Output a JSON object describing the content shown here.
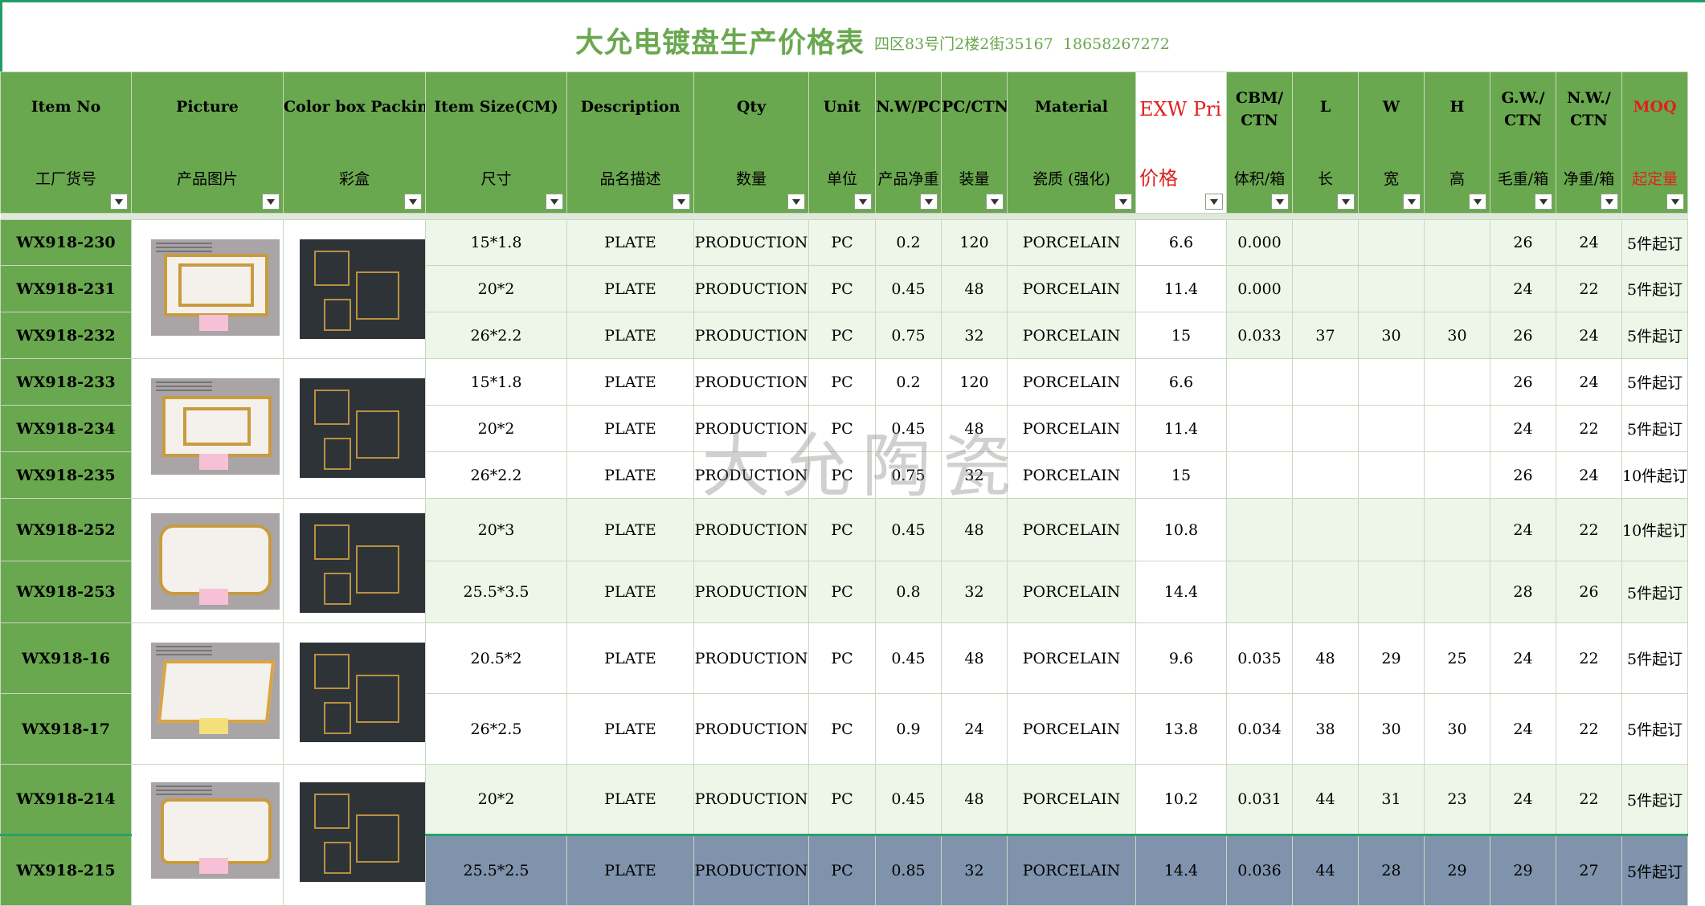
{
  "title": {
    "main": "大允电镀盘生产价格表",
    "address": "四区83号门2楼2街35167",
    "phone": "18658267272"
  },
  "watermark": "大允陶瓷",
  "columns": [
    {
      "en": "Item No",
      "cn": "工厂货号"
    },
    {
      "en": "Picture",
      "cn": "产品图片"
    },
    {
      "en": "Color box Packing",
      "cn": "彩盒"
    },
    {
      "en": "Item Size(CM)",
      "cn": "尺寸"
    },
    {
      "en": "Description",
      "cn": "品名描述"
    },
    {
      "en": "Qty",
      "cn": "数量"
    },
    {
      "en": "Unit",
      "cn": "单位"
    },
    {
      "en": "N.W/PC",
      "cn": "产品净重"
    },
    {
      "en": "PC/CTN",
      "cn": "装量"
    },
    {
      "en": "Material",
      "cn": "瓷质 (强化)"
    },
    {
      "en": "EXW Pri",
      "cn": "价格"
    },
    {
      "en": "CBM/\nCTN",
      "cn": "体积/箱"
    },
    {
      "en": "L",
      "cn": "长"
    },
    {
      "en": "W",
      "cn": "宽"
    },
    {
      "en": "H",
      "cn": "高"
    },
    {
      "en": "G.W./\nCTN",
      "cn": "毛重/箱"
    },
    {
      "en": "N.W./\nCTN",
      "cn": "净重/箱"
    },
    {
      "en": "MOQ",
      "cn": "起定量"
    }
  ],
  "rows": [
    {
      "item": "WX918-230",
      "size": "15*1.8",
      "desc": "PLATE",
      "qty": "PRODUCTION",
      "unit": "PC",
      "nw": "0.2",
      "pcs": "120",
      "mat": "PORCELAIN",
      "price": "6.6",
      "cbm": "0.000",
      "l": "",
      "w": "",
      "h": "",
      "gw": "26",
      "nwc": "24",
      "moq": "5件起订"
    },
    {
      "item": "WX918-231",
      "size": "20*2",
      "desc": "PLATE",
      "qty": "PRODUCTION",
      "unit": "PC",
      "nw": "0.45",
      "pcs": "48",
      "mat": "PORCELAIN",
      "price": "11.4",
      "cbm": "0.000",
      "l": "",
      "w": "",
      "h": "",
      "gw": "24",
      "nwc": "22",
      "moq": "5件起订"
    },
    {
      "item": "WX918-232",
      "size": "26*2.2",
      "desc": "PLATE",
      "qty": "PRODUCTION",
      "unit": "PC",
      "nw": "0.75",
      "pcs": "32",
      "mat": "PORCELAIN",
      "price": "15",
      "cbm": "0.033",
      "l": "37",
      "w": "30",
      "h": "30",
      "gw": "26",
      "nwc": "24",
      "moq": "5件起订"
    },
    {
      "item": "WX918-233",
      "size": "15*1.8",
      "desc": "PLATE",
      "qty": "PRODUCTION",
      "unit": "PC",
      "nw": "0.2",
      "pcs": "120",
      "mat": "PORCELAIN",
      "price": "6.6",
      "cbm": "",
      "l": "",
      "w": "",
      "h": "",
      "gw": "26",
      "nwc": "24",
      "moq": "5件起订"
    },
    {
      "item": "WX918-234",
      "size": "20*2",
      "desc": "PLATE",
      "qty": "PRODUCTION",
      "unit": "PC",
      "nw": "0.45",
      "pcs": "48",
      "mat": "PORCELAIN",
      "price": "11.4",
      "cbm": "",
      "l": "",
      "w": "",
      "h": "",
      "gw": "24",
      "nwc": "22",
      "moq": "5件起订"
    },
    {
      "item": "WX918-235",
      "size": "26*2.2",
      "desc": "PLATE",
      "qty": "PRODUCTION",
      "unit": "PC",
      "nw": "0.75",
      "pcs": "32",
      "mat": "PORCELAIN",
      "price": "15",
      "cbm": "",
      "l": "",
      "w": "",
      "h": "",
      "gw": "26",
      "nwc": "24",
      "moq": "10件起订"
    },
    {
      "item": "WX918-252",
      "size": "20*3",
      "desc": "PLATE",
      "qty": "PRODUCTION",
      "unit": "PC",
      "nw": "0.45",
      "pcs": "48",
      "mat": "PORCELAIN",
      "price": "10.8",
      "cbm": "",
      "l": "",
      "w": "",
      "h": "",
      "gw": "24",
      "nwc": "22",
      "moq": "10件起订"
    },
    {
      "item": "WX918-253",
      "size": "25.5*3.5",
      "desc": "PLATE",
      "qty": "PRODUCTION",
      "unit": "PC",
      "nw": "0.8",
      "pcs": "32",
      "mat": "PORCELAIN",
      "price": "14.4",
      "cbm": "",
      "l": "",
      "w": "",
      "h": "",
      "gw": "28",
      "nwc": "26",
      "moq": "5件起订"
    },
    {
      "item": "WX918-16",
      "size": "20.5*2",
      "desc": "PLATE",
      "qty": "PRODUCTION",
      "unit": "PC",
      "nw": "0.45",
      "pcs": "48",
      "mat": "PORCELAIN",
      "price": "9.6",
      "cbm": "0.035",
      "l": "48",
      "w": "29",
      "h": "25",
      "gw": "24",
      "nwc": "22",
      "moq": "5件起订"
    },
    {
      "item": "WX918-17",
      "size": "26*2.5",
      "desc": "PLATE",
      "qty": "PRODUCTION",
      "unit": "PC",
      "nw": "0.9",
      "pcs": "24",
      "mat": "PORCELAIN",
      "price": "13.8",
      "cbm": "0.034",
      "l": "38",
      "w": "30",
      "h": "30",
      "gw": "24",
      "nwc": "22",
      "moq": "5件起订"
    },
    {
      "item": "WX918-214",
      "size": "20*2",
      "desc": "PLATE",
      "qty": "PRODUCTION",
      "unit": "PC",
      "nw": "0.45",
      "pcs": "48",
      "mat": "PORCELAIN",
      "price": "10.2",
      "cbm": "0.031",
      "l": "44",
      "w": "31",
      "h": "23",
      "gw": "24",
      "nwc": "22",
      "moq": "5件起订"
    },
    {
      "item": "WX918-215",
      "size": "25.5*2.5",
      "desc": "PLATE",
      "qty": "PRODUCTION",
      "unit": "PC",
      "nw": "0.85",
      "pcs": "32",
      "mat": "PORCELAIN",
      "price": "14.4",
      "cbm": "0.036",
      "l": "44",
      "w": "28",
      "h": "29",
      "gw": "29",
      "nwc": "27",
      "moq": "5件起订"
    }
  ]
}
